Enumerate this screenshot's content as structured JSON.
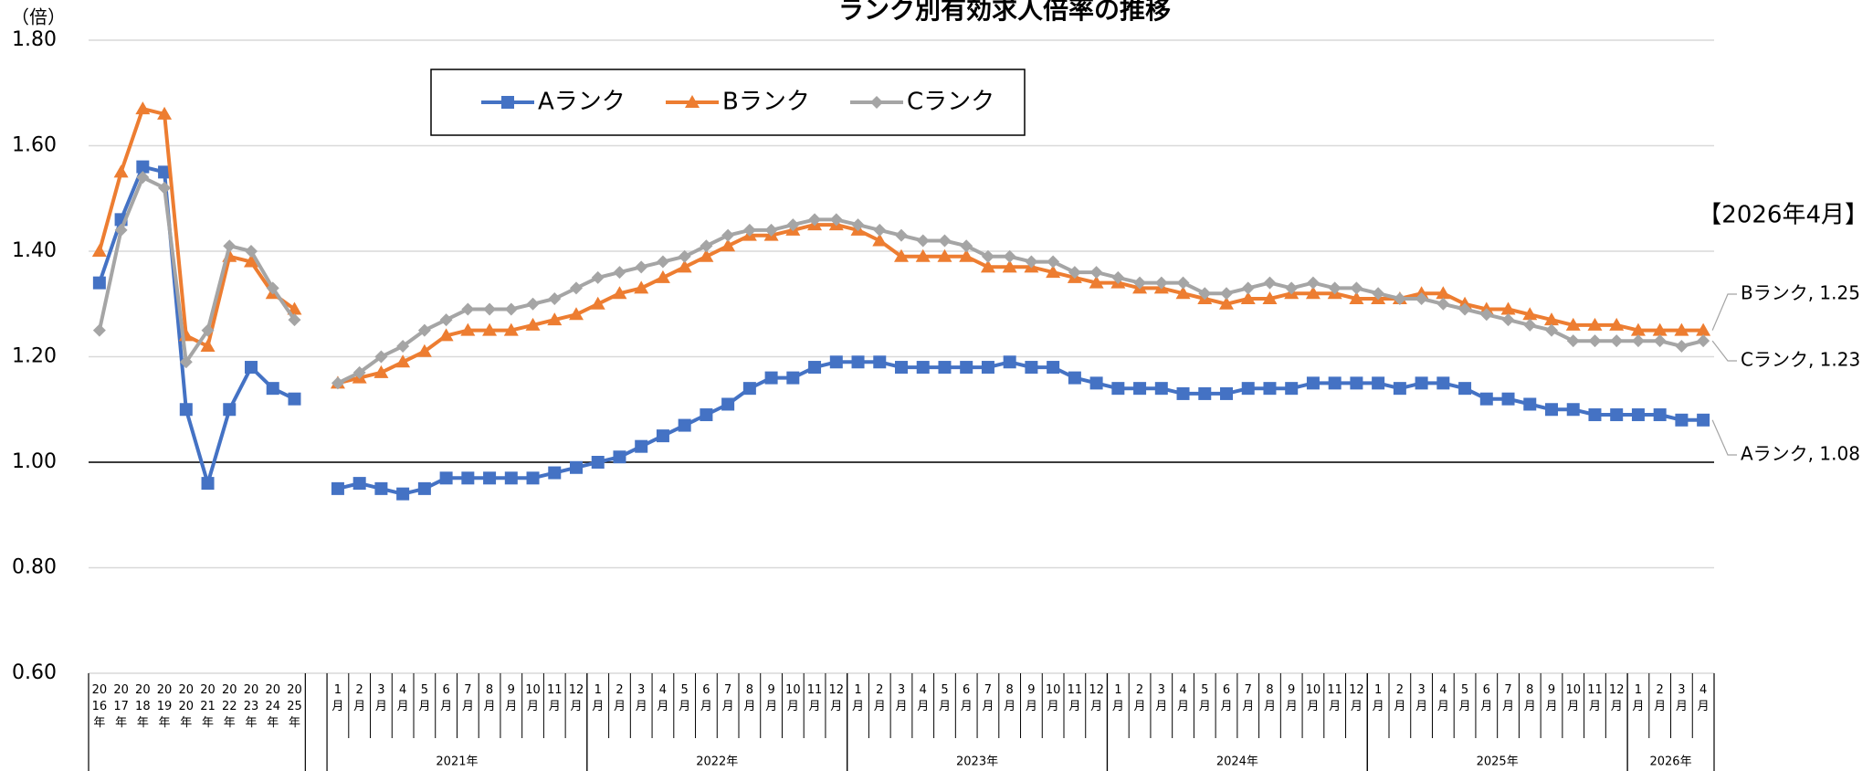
{
  "chart_data": {
    "type": "line",
    "title": "ランク別有効求人倍率の推移",
    "y_unit": "（倍）",
    "annotation": "【2026年4月】",
    "categories": [
      "2016年",
      "2017年",
      "2018年",
      "2019年",
      "2020年",
      "2021年",
      "2022年",
      "2023年",
      "2024年",
      "2025年",
      null,
      "1月",
      "2月",
      "3月",
      "4月",
      "5月",
      "6月",
      "7月",
      "8月",
      "9月",
      "10月",
      "11月",
      "12月",
      "1月",
      "2月",
      "3月",
      "4月",
      "5月",
      "6月",
      "7月",
      "8月",
      "9月",
      "10月",
      "11月",
      "12月",
      "1月",
      "2月",
      "3月",
      "4月",
      "5月",
      "6月",
      "7月",
      "8月",
      "9月",
      "10月",
      "11月",
      "12月",
      "1月",
      "2月",
      "3月",
      "4月",
      "5月",
      "6月",
      "7月",
      "8月",
      "9月",
      "10月",
      "11月",
      "12月",
      "1月",
      "2月",
      "3月",
      "4月",
      "5月",
      "6月",
      "7月",
      "8月",
      "9月",
      "10月",
      "11月",
      "12月",
      "1月",
      "2月",
      "3月",
      "4月"
    ],
    "groups": [
      "2021年",
      "2022年",
      "2023年",
      "2024年",
      "2025年",
      "2026年"
    ],
    "series": [
      {
        "name": "Aランク",
        "color": "#4472c4",
        "marker": "square",
        "values": [
          1.34,
          1.46,
          1.56,
          1.55,
          1.1,
          0.96,
          1.1,
          1.18,
          1.14,
          1.12,
          null,
          0.95,
          0.96,
          0.95,
          0.94,
          0.95,
          0.97,
          0.97,
          0.97,
          0.97,
          0.97,
          0.98,
          0.99,
          1.0,
          1.01,
          1.03,
          1.05,
          1.07,
          1.09,
          1.11,
          1.14,
          1.16,
          1.16,
          1.18,
          1.19,
          1.19,
          1.19,
          1.18,
          1.18,
          1.18,
          1.18,
          1.18,
          1.19,
          1.18,
          1.18,
          1.16,
          1.15,
          1.14,
          1.14,
          1.14,
          1.13,
          1.13,
          1.13,
          1.14,
          1.14,
          1.14,
          1.15,
          1.15,
          1.15,
          1.15,
          1.14,
          1.15,
          1.15,
          1.14,
          1.12,
          1.12,
          1.11,
          1.1,
          1.1,
          1.09,
          1.09,
          1.09,
          1.09,
          1.08,
          1.08
        ],
        "value_labels": [
          null,
          null,
          null,
          null,
          null,
          null,
          null,
          null,
          null,
          null,
          null,
          null,
          null,
          null,
          null,
          null,
          null,
          null,
          null,
          null,
          null,
          null,
          null,
          null,
          null,
          null,
          null,
          null,
          null,
          null,
          null,
          null,
          null,
          null,
          null,
          null,
          null,
          null,
          null,
          null,
          null,
          null,
          null,
          null,
          null,
          null,
          null,
          null,
          null,
          null,
          null,
          null,
          null,
          null,
          null,
          null,
          null,
          null,
          null,
          null,
          null,
          null,
          null,
          null,
          null,
          null,
          null,
          null,
          null,
          null,
          null,
          null,
          null,
          null,
          "Aランク, 1.08"
        ]
      },
      {
        "name": "Bランク",
        "color": "#ed7d31",
        "marker": "triangle",
        "values": [
          1.4,
          1.55,
          1.67,
          1.66,
          1.24,
          1.22,
          1.39,
          1.38,
          1.32,
          1.29,
          null,
          1.15,
          1.16,
          1.17,
          1.19,
          1.21,
          1.24,
          1.25,
          1.25,
          1.25,
          1.26,
          1.27,
          1.28,
          1.3,
          1.32,
          1.33,
          1.35,
          1.37,
          1.39,
          1.41,
          1.43,
          1.43,
          1.44,
          1.45,
          1.45,
          1.44,
          1.42,
          1.39,
          1.39,
          1.39,
          1.39,
          1.37,
          1.37,
          1.37,
          1.36,
          1.35,
          1.34,
          1.34,
          1.33,
          1.33,
          1.32,
          1.31,
          1.3,
          1.31,
          1.31,
          1.32,
          1.32,
          1.32,
          1.31,
          1.31,
          1.31,
          1.32,
          1.32,
          1.3,
          1.29,
          1.29,
          1.28,
          1.27,
          1.26,
          1.26,
          1.26,
          1.25,
          1.25,
          1.25,
          1.25
        ],
        "value_labels": [
          null,
          null,
          null,
          null,
          null,
          null,
          null,
          null,
          null,
          null,
          null,
          null,
          null,
          null,
          null,
          null,
          null,
          null,
          null,
          null,
          null,
          null,
          null,
          null,
          null,
          null,
          null,
          null,
          null,
          null,
          null,
          null,
          null,
          null,
          null,
          null,
          null,
          null,
          null,
          null,
          null,
          null,
          null,
          null,
          null,
          null,
          null,
          null,
          null,
          null,
          null,
          null,
          null,
          null,
          null,
          null,
          null,
          null,
          null,
          null,
          null,
          null,
          null,
          null,
          null,
          null,
          null,
          null,
          null,
          null,
          null,
          null,
          null,
          null,
          "Bランク, 1.25"
        ]
      },
      {
        "name": "Cランク",
        "color": "#a5a5a5",
        "marker": "diamond",
        "values": [
          1.25,
          1.44,
          1.54,
          1.52,
          1.19,
          1.25,
          1.41,
          1.4,
          1.33,
          1.27,
          null,
          1.15,
          1.17,
          1.2,
          1.22,
          1.25,
          1.27,
          1.29,
          1.29,
          1.29,
          1.3,
          1.31,
          1.33,
          1.35,
          1.36,
          1.37,
          1.38,
          1.39,
          1.41,
          1.43,
          1.44,
          1.44,
          1.45,
          1.46,
          1.46,
          1.45,
          1.44,
          1.43,
          1.42,
          1.42,
          1.41,
          1.39,
          1.39,
          1.38,
          1.38,
          1.36,
          1.36,
          1.35,
          1.34,
          1.34,
          1.34,
          1.32,
          1.32,
          1.33,
          1.34,
          1.33,
          1.34,
          1.33,
          1.33,
          1.32,
          1.31,
          1.31,
          1.3,
          1.29,
          1.28,
          1.27,
          1.26,
          1.25,
          1.23,
          1.23,
          1.23,
          1.23,
          1.23,
          1.22,
          1.23
        ],
        "value_labels": [
          null,
          null,
          null,
          null,
          null,
          null,
          null,
          null,
          null,
          null,
          null,
          null,
          null,
          null,
          null,
          null,
          null,
          null,
          null,
          null,
          null,
          null,
          null,
          null,
          null,
          null,
          null,
          null,
          null,
          null,
          null,
          null,
          null,
          null,
          null,
          null,
          null,
          null,
          null,
          null,
          null,
          null,
          null,
          null,
          null,
          null,
          null,
          null,
          null,
          null,
          null,
          null,
          null,
          null,
          null,
          null,
          null,
          null,
          null,
          null,
          null,
          null,
          null,
          null,
          null,
          null,
          null,
          null,
          null,
          null,
          null,
          null,
          null,
          null,
          "Cランク, 1.23"
        ]
      }
    ],
    "ylim": [
      0.6,
      1.8
    ],
    "yticks": [
      {
        "value": 0.6,
        "label": "0.60"
      },
      {
        "value": 0.8,
        "label": "0.80"
      },
      {
        "value": 1.0,
        "label": "1.00"
      },
      {
        "value": 1.2,
        "label": "1.20"
      },
      {
        "value": 1.4,
        "label": "1.40"
      },
      {
        "value": 1.6,
        "label": "1.60"
      },
      {
        "value": 1.8,
        "label": "1.80"
      }
    ],
    "hline": 1.0,
    "grid": true,
    "legend": "top"
  }
}
